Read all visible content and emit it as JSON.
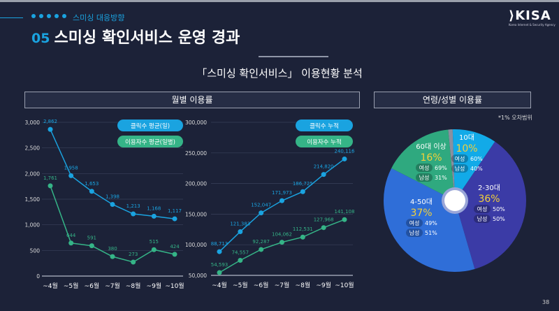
{
  "header": {
    "kicker": "스미싱 대응방향",
    "number": "05",
    "title": "스미싱 확인서비스 운영 경과",
    "logo": "KISA",
    "logo_sub": "Korea Internet & Security Agency"
  },
  "subtitle": "「스미싱 확인서비스」 이용현황 분석",
  "panels": {
    "monthly": "월별 이용률",
    "age_gender": "연령/성별 이용률"
  },
  "note": "*1% 오차범위",
  "page_number": "38",
  "colors": {
    "background": "#1c2238",
    "click": "#1aa3e0",
    "user": "#35b487",
    "accent": "#f3d03a"
  },
  "chart_data": [
    {
      "type": "line",
      "categories": [
        "~4월",
        "~5월",
        "~6월",
        "~7월",
        "~8월",
        "~9월",
        "~10월"
      ],
      "ylim": [
        0,
        3000
      ],
      "yticks": [
        "0",
        "500",
        "1,000",
        "1,500",
        "2,000",
        "2,500",
        "3,000"
      ],
      "grid": true,
      "legend": "top-right",
      "series": [
        {
          "name": "클릭수 평균(일)",
          "values": [
            2862,
            1958,
            1653,
            1398,
            1213,
            1168,
            1117
          ],
          "labels": [
            "2,862",
            "1,958",
            "1,653",
            "1,398",
            "1,213",
            "1,168",
            "1,117"
          ]
        },
        {
          "name": "이용자수 평균(일별)",
          "values": [
            1761,
            644,
            591,
            380,
            273,
            515,
            424
          ],
          "labels": [
            "1,761",
            "644",
            "591",
            "380",
            "273",
            "515",
            "424"
          ]
        }
      ]
    },
    {
      "type": "line",
      "categories": [
        "~4월",
        "~5월",
        "~6월",
        "~7월",
        "~8월",
        "~9월",
        "~10월"
      ],
      "ylim": [
        50000,
        300000
      ],
      "yticks": [
        "50,000",
        "100,000",
        "150,000",
        "200,000",
        "250,000",
        "300,000"
      ],
      "grid": true,
      "legend": "top-right",
      "series": [
        {
          "name": "클릭수 누적",
          "values": [
            88713,
            121383,
            152047,
            171973,
            186725,
            214820,
            240116
          ],
          "labels": [
            "88,713",
            "121,383",
            "152,047",
            "171,973",
            "186,725",
            "214,820",
            "240,116"
          ]
        },
        {
          "name": "이용자수 누적",
          "values": [
            54593,
            74557,
            92287,
            104062,
            112531,
            127968,
            141108
          ],
          "labels": [
            "54,593",
            "74,557",
            "92,287",
            "104,062",
            "112,531",
            "127,968",
            "141,108"
          ]
        }
      ]
    },
    {
      "type": "pie",
      "slices": [
        {
          "label": "10대",
          "value": 10,
          "pct": "10%",
          "female": "여성",
          "female_pct": "60%",
          "male": "남성",
          "male_pct": "40%",
          "color": "#12aae8"
        },
        {
          "label": "2-30대",
          "value": 36,
          "pct": "36%",
          "female": "여성",
          "female_pct": "50%",
          "male": "남성",
          "male_pct": "50%",
          "color": "#3b3ba6"
        },
        {
          "label": "4-50대",
          "value": 37,
          "pct": "37%",
          "female": "여성",
          "female_pct": "49%",
          "male": "남성",
          "male_pct": "51%",
          "color": "#2f6ed8"
        },
        {
          "label": "60대 이상",
          "value": 16,
          "pct": "16%",
          "female": "여성",
          "female_pct": "69%",
          "male": "남성",
          "male_pct": "31%",
          "color": "#2fa97f"
        },
        {
          "label": "",
          "value": 1,
          "color": "#8a90a0"
        }
      ]
    }
  ]
}
